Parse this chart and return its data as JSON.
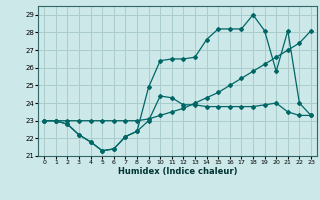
{
  "xlabel": "Humidex (Indice chaleur)",
  "bg_color": "#cce8e8",
  "grid_color": "#aacccc",
  "line_color": "#006666",
  "xlim": [
    -0.5,
    23.5
  ],
  "ylim": [
    21.0,
    29.5
  ],
  "yticks": [
    21,
    22,
    23,
    24,
    25,
    26,
    27,
    28,
    29
  ],
  "xticks": [
    0,
    1,
    2,
    3,
    4,
    5,
    6,
    7,
    8,
    9,
    10,
    11,
    12,
    13,
    14,
    15,
    16,
    17,
    18,
    19,
    20,
    21,
    22,
    23
  ],
  "series": [
    {
      "x": [
        0,
        1,
        2,
        3,
        4,
        5,
        6,
        7,
        8,
        9,
        10,
        11,
        12,
        13,
        14,
        15,
        16,
        17,
        18,
        19,
        20,
        21,
        22,
        23
      ],
      "y": [
        23,
        23,
        22.8,
        22.2,
        21.8,
        21.3,
        21.4,
        22.1,
        22.4,
        23.0,
        24.4,
        24.3,
        23.9,
        23.9,
        23.8,
        23.8,
        23.8,
        23.8,
        23.8,
        23.9,
        24.0,
        23.5,
        23.3,
        23.3
      ]
    },
    {
      "x": [
        0,
        1,
        2,
        3,
        4,
        5,
        6,
        7,
        8,
        9,
        10,
        11,
        12,
        13,
        14,
        15,
        16,
        17,
        18,
        19,
        20,
        21,
        22,
        23
      ],
      "y": [
        23,
        23,
        23,
        23,
        23,
        23,
        23,
        23,
        23,
        23.1,
        23.3,
        23.5,
        23.7,
        24.0,
        24.3,
        24.6,
        25.0,
        25.4,
        25.8,
        26.2,
        26.6,
        27.0,
        27.4,
        28.1
      ]
    },
    {
      "x": [
        0,
        1,
        2,
        3,
        4,
        5,
        6,
        7,
        8,
        9,
        10,
        11,
        12,
        13,
        14,
        15,
        16,
        17,
        18,
        19,
        20,
        21,
        22,
        23
      ],
      "y": [
        23,
        23,
        22.8,
        22.2,
        21.8,
        21.3,
        21.4,
        22.1,
        22.4,
        24.9,
        26.4,
        26.5,
        26.5,
        26.6,
        27.6,
        28.2,
        28.2,
        28.2,
        29.0,
        28.1,
        25.8,
        28.1,
        24.0,
        23.3
      ]
    }
  ]
}
